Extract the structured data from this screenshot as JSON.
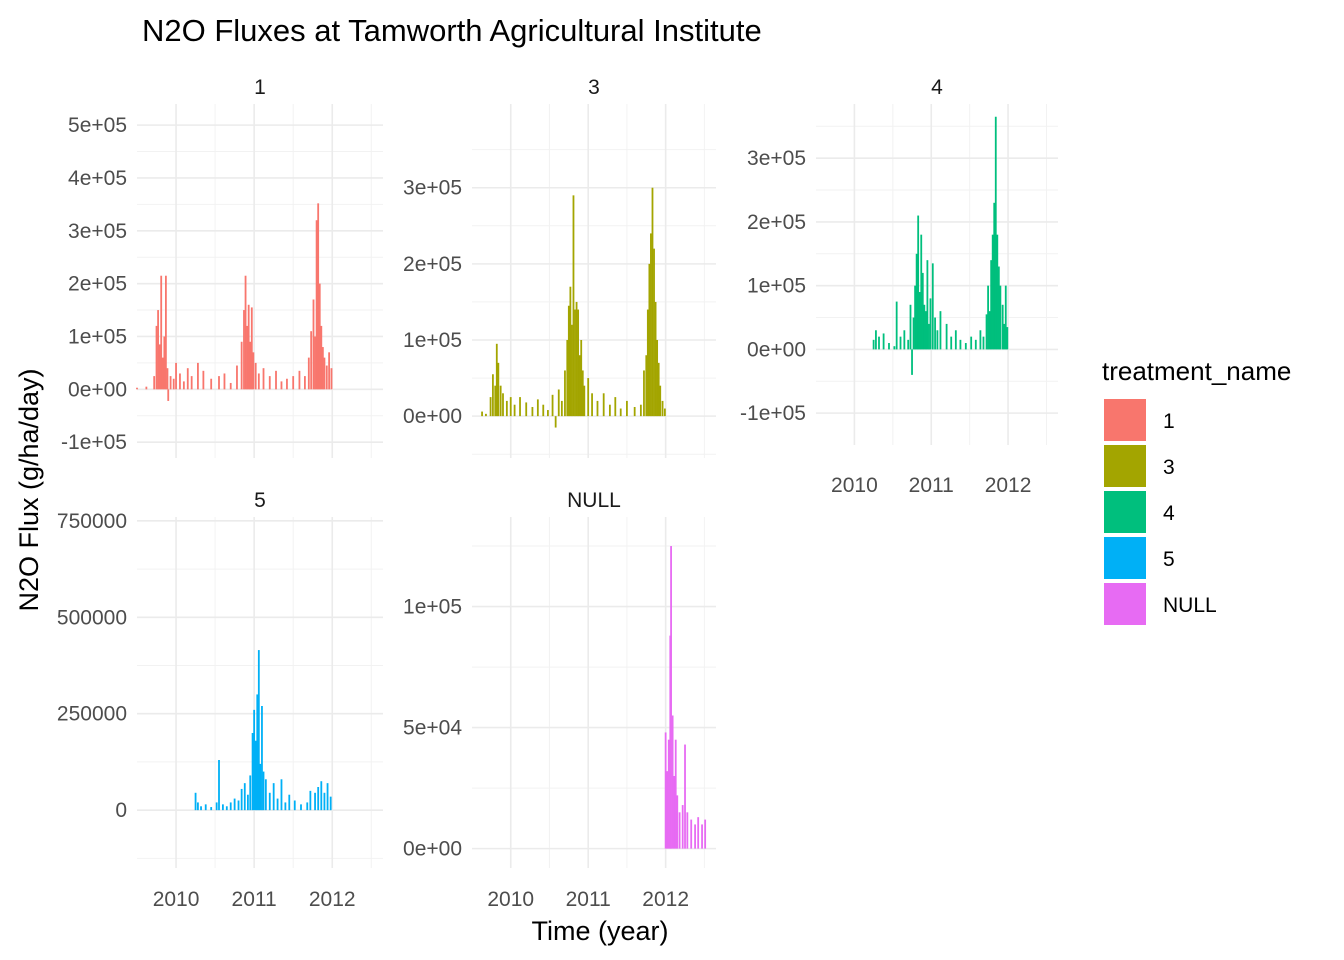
{
  "chart_data": {
    "type": "bar",
    "title": "N2O Fluxes at Tamworth Agricultural Institute",
    "xlabel": "Time (year)",
    "ylabel": "N2O Flux (g/ha/day)",
    "legend": {
      "title": "treatment_name",
      "placement": "right",
      "entries": [
        {
          "label": "1",
          "color": "#F8766D"
        },
        {
          "label": "3",
          "color": "#A3A500"
        },
        {
          "label": "4",
          "color": "#00BF7D"
        },
        {
          "label": "5",
          "color": "#00B0F6"
        },
        {
          "label": "NULL",
          "color": "#E76BF3"
        }
      ]
    },
    "grid": true,
    "x_tick_labels": [
      "2010",
      "2011",
      "2012"
    ],
    "panels": [
      {
        "name": "1",
        "color": "#F8766D",
        "xlim": [
          2009.5,
          2012.65
        ],
        "ylim": [
          -130000,
          540000
        ],
        "y_ticks": [
          -100000,
          0,
          100000,
          200000,
          300000,
          400000,
          500000
        ],
        "y_tick_labels": [
          "-1e+05",
          "0e+00",
          "1e+05",
          "2e+05",
          "3e+05",
          "4e+05",
          "5e+05"
        ],
        "show_x_labels": false,
        "series": [
          [
            2009.5,
            3000
          ],
          [
            2009.62,
            5000
          ],
          [
            2009.72,
            25000
          ],
          [
            2009.75,
            120000
          ],
          [
            2009.77,
            150000
          ],
          [
            2009.79,
            85000
          ],
          [
            2009.81,
            215000
          ],
          [
            2009.83,
            60000
          ],
          [
            2009.85,
            100000
          ],
          [
            2009.87,
            215000
          ],
          [
            2009.89,
            40000
          ],
          [
            2009.9,
            -22000
          ],
          [
            2009.93,
            25000
          ],
          [
            2009.97,
            20000
          ],
          [
            2010.0,
            50000
          ],
          [
            2010.05,
            30000
          ],
          [
            2010.1,
            15000
          ],
          [
            2010.15,
            40000
          ],
          [
            2010.2,
            25000
          ],
          [
            2010.28,
            50000
          ],
          [
            2010.35,
            35000
          ],
          [
            2010.45,
            20000
          ],
          [
            2010.55,
            25000
          ],
          [
            2010.62,
            30000
          ],
          [
            2010.7,
            12000
          ],
          [
            2010.78,
            45000
          ],
          [
            2010.84,
            90000
          ],
          [
            2010.87,
            150000
          ],
          [
            2010.89,
            215000
          ],
          [
            2010.91,
            120000
          ],
          [
            2010.93,
            160000
          ],
          [
            2010.95,
            90000
          ],
          [
            2010.97,
            155000
          ],
          [
            2010.99,
            70000
          ],
          [
            2011.02,
            50000
          ],
          [
            2011.06,
            30000
          ],
          [
            2011.12,
            40000
          ],
          [
            2011.2,
            25000
          ],
          [
            2011.28,
            35000
          ],
          [
            2011.35,
            15000
          ],
          [
            2011.42,
            20000
          ],
          [
            2011.5,
            25000
          ],
          [
            2011.58,
            35000
          ],
          [
            2011.65,
            25000
          ],
          [
            2011.7,
            60000
          ],
          [
            2011.73,
            110000
          ],
          [
            2011.76,
            170000
          ],
          [
            2011.78,
            100000
          ],
          [
            2011.8,
            320000
          ],
          [
            2011.82,
            352000
          ],
          [
            2011.84,
            200000
          ],
          [
            2011.86,
            120000
          ],
          [
            2011.88,
            80000
          ],
          [
            2011.9,
            60000
          ],
          [
            2011.93,
            45000
          ],
          [
            2011.96,
            70000
          ],
          [
            2011.99,
            40000
          ]
        ]
      },
      {
        "name": "3",
        "color": "#A3A500",
        "xlim": [
          2009.5,
          2012.65
        ],
        "ylim": [
          -55000,
          410000
        ],
        "y_ticks": [
          0,
          100000,
          200000,
          300000
        ],
        "y_tick_labels": [
          "0e+00",
          "1e+05",
          "2e+05",
          "3e+05"
        ],
        "show_x_labels": false,
        "series": [
          [
            2009.63,
            6000
          ],
          [
            2009.68,
            3000
          ],
          [
            2009.74,
            25000
          ],
          [
            2009.77,
            55000
          ],
          [
            2009.8,
            40000
          ],
          [
            2009.82,
            95000
          ],
          [
            2009.84,
            70000
          ],
          [
            2009.87,
            40000
          ],
          [
            2009.9,
            30000
          ],
          [
            2009.95,
            20000
          ],
          [
            2010.0,
            25000
          ],
          [
            2010.05,
            15000
          ],
          [
            2010.12,
            25000
          ],
          [
            2010.2,
            18000
          ],
          [
            2010.28,
            12000
          ],
          [
            2010.35,
            22000
          ],
          [
            2010.42,
            15000
          ],
          [
            2010.48,
            8000
          ],
          [
            2010.54,
            28000
          ],
          [
            2010.58,
            -15000
          ],
          [
            2010.62,
            35000
          ],
          [
            2010.66,
            20000
          ],
          [
            2010.7,
            60000
          ],
          [
            2010.73,
            100000
          ],
          [
            2010.75,
            145000
          ],
          [
            2010.77,
            170000
          ],
          [
            2010.79,
            120000
          ],
          [
            2010.81,
            290000
          ],
          [
            2010.83,
            140000
          ],
          [
            2010.85,
            150000
          ],
          [
            2010.87,
            140000
          ],
          [
            2010.89,
            80000
          ],
          [
            2010.91,
            100000
          ],
          [
            2010.93,
            60000
          ],
          [
            2010.95,
            40000
          ],
          [
            2011.0,
            50000
          ],
          [
            2011.05,
            30000
          ],
          [
            2011.12,
            20000
          ],
          [
            2011.2,
            30000
          ],
          [
            2011.28,
            15000
          ],
          [
            2011.35,
            25000
          ],
          [
            2011.42,
            10000
          ],
          [
            2011.5,
            20000
          ],
          [
            2011.6,
            12000
          ],
          [
            2011.68,
            15000
          ],
          [
            2011.72,
            60000
          ],
          [
            2011.75,
            80000
          ],
          [
            2011.77,
            140000
          ],
          [
            2011.79,
            200000
          ],
          [
            2011.81,
            240000
          ],
          [
            2011.83,
            300000
          ],
          [
            2011.85,
            220000
          ],
          [
            2011.87,
            150000
          ],
          [
            2011.89,
            100000
          ],
          [
            2011.91,
            70000
          ],
          [
            2011.93,
            40000
          ],
          [
            2011.96,
            20000
          ],
          [
            2011.99,
            10000
          ]
        ]
      },
      {
        "name": "4",
        "color": "#00BF7D",
        "xlim": [
          2009.5,
          2012.65
        ],
        "ylim": [
          -150000,
          385000
        ],
        "y_ticks": [
          -100000,
          0,
          100000,
          200000,
          300000
        ],
        "y_tick_labels": [
          "-1e+05",
          "0e+00",
          "1e+05",
          "2e+05",
          "3e+05"
        ],
        "show_x_labels": true,
        "series": [
          [
            2010.25,
            15000
          ],
          [
            2010.28,
            30000
          ],
          [
            2010.32,
            20000
          ],
          [
            2010.38,
            25000
          ],
          [
            2010.45,
            10000
          ],
          [
            2010.52,
            5000
          ],
          [
            2010.55,
            75000
          ],
          [
            2010.6,
            20000
          ],
          [
            2010.65,
            30000
          ],
          [
            2010.7,
            15000
          ],
          [
            2010.73,
            70000
          ],
          [
            2010.75,
            -40000
          ],
          [
            2010.77,
            50000
          ],
          [
            2010.79,
            100000
          ],
          [
            2010.81,
            150000
          ],
          [
            2010.83,
            210000
          ],
          [
            2010.85,
            90000
          ],
          [
            2010.87,
            180000
          ],
          [
            2010.89,
            120000
          ],
          [
            2010.91,
            70000
          ],
          [
            2010.93,
            60000
          ],
          [
            2010.95,
            140000
          ],
          [
            2010.97,
            40000
          ],
          [
            2010.99,
            80000
          ],
          [
            2011.02,
            135000
          ],
          [
            2011.05,
            50000
          ],
          [
            2011.08,
            30000
          ],
          [
            2011.12,
            60000
          ],
          [
            2011.2,
            40000
          ],
          [
            2011.26,
            20000
          ],
          [
            2011.32,
            30000
          ],
          [
            2011.38,
            15000
          ],
          [
            2011.45,
            10000
          ],
          [
            2011.52,
            20000
          ],
          [
            2011.58,
            15000
          ],
          [
            2011.64,
            30000
          ],
          [
            2011.68,
            20000
          ],
          [
            2011.72,
            55000
          ],
          [
            2011.74,
            100000
          ],
          [
            2011.76,
            60000
          ],
          [
            2011.78,
            140000
          ],
          [
            2011.8,
            180000
          ],
          [
            2011.82,
            230000
          ],
          [
            2011.84,
            365000
          ],
          [
            2011.86,
            180000
          ],
          [
            2011.88,
            130000
          ],
          [
            2011.9,
            100000
          ],
          [
            2011.93,
            70000
          ],
          [
            2011.95,
            40000
          ],
          [
            2011.97,
            100000
          ],
          [
            2011.99,
            35000
          ]
        ]
      },
      {
        "name": "5",
        "color": "#00B0F6",
        "xlim": [
          2009.5,
          2012.65
        ],
        "ylim": [
          -150000,
          760000
        ],
        "y_ticks": [
          0,
          250000,
          500000,
          750000
        ],
        "y_tick_labels": [
          "0",
          "250000",
          "500000",
          "750000"
        ],
        "show_x_labels": true,
        "series": [
          [
            2010.25,
            45000
          ],
          [
            2010.28,
            20000
          ],
          [
            2010.32,
            10000
          ],
          [
            2010.38,
            15000
          ],
          [
            2010.45,
            8000
          ],
          [
            2010.52,
            20000
          ],
          [
            2010.55,
            130000
          ],
          [
            2010.6,
            15000
          ],
          [
            2010.65,
            10000
          ],
          [
            2010.7,
            20000
          ],
          [
            2010.75,
            30000
          ],
          [
            2010.8,
            25000
          ],
          [
            2010.84,
            55000
          ],
          [
            2010.88,
            70000
          ],
          [
            2010.92,
            40000
          ],
          [
            2010.95,
            90000
          ],
          [
            2010.98,
            200000
          ],
          [
            2011.0,
            260000
          ],
          [
            2011.02,
            180000
          ],
          [
            2011.04,
            300000
          ],
          [
            2011.06,
            415000
          ],
          [
            2011.08,
            120000
          ],
          [
            2011.1,
            270000
          ],
          [
            2011.12,
            100000
          ],
          [
            2011.15,
            80000
          ],
          [
            2011.2,
            45000
          ],
          [
            2011.25,
            70000
          ],
          [
            2011.3,
            30000
          ],
          [
            2011.35,
            80000
          ],
          [
            2011.4,
            20000
          ],
          [
            2011.45,
            40000
          ],
          [
            2011.52,
            25000
          ],
          [
            2011.6,
            15000
          ],
          [
            2011.68,
            20000
          ],
          [
            2011.72,
            50000
          ],
          [
            2011.78,
            45000
          ],
          [
            2011.82,
            60000
          ],
          [
            2011.86,
            75000
          ],
          [
            2011.9,
            45000
          ],
          [
            2011.94,
            70000
          ],
          [
            2011.98,
            35000
          ]
        ]
      },
      {
        "name": "NULL",
        "color": "#E76BF3",
        "xlim": [
          2009.5,
          2012.65
        ],
        "ylim": [
          -8000,
          137000
        ],
        "y_ticks": [
          0,
          50000,
          100000
        ],
        "y_tick_labels": [
          "0e+00",
          "5e+04",
          "1e+05"
        ],
        "show_x_labels": true,
        "series": [
          [
            2012.0,
            48000
          ],
          [
            2012.02,
            32000
          ],
          [
            2012.04,
            45000
          ],
          [
            2012.06,
            88000
          ],
          [
            2012.07,
            125000
          ],
          [
            2012.09,
            55000
          ],
          [
            2012.11,
            30000
          ],
          [
            2012.13,
            45000
          ],
          [
            2012.15,
            22000
          ],
          [
            2012.18,
            15000
          ],
          [
            2012.22,
            18000
          ],
          [
            2012.25,
            43000
          ],
          [
            2012.28,
            15000
          ],
          [
            2012.33,
            12000
          ],
          [
            2012.38,
            10000
          ],
          [
            2012.42,
            13000
          ],
          [
            2012.47,
            10000
          ],
          [
            2012.51,
            12000
          ]
        ]
      }
    ]
  }
}
